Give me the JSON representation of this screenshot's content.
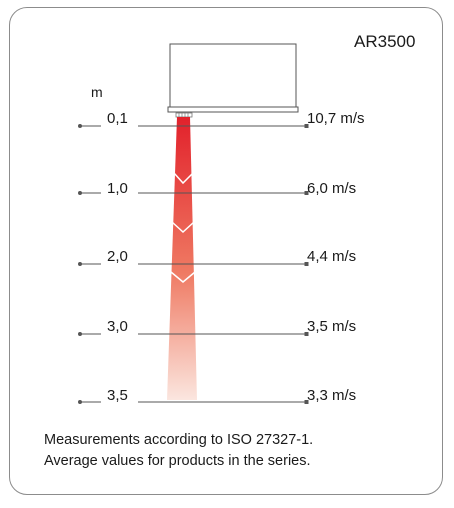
{
  "model": "AR3500",
  "distance_unit": "m",
  "rows": [
    {
      "distance": "0,1",
      "speed": "10,7 m/s"
    },
    {
      "distance": "1,0",
      "speed": "6,0 m/s"
    },
    {
      "distance": "2,0",
      "speed": "4,4 m/s"
    },
    {
      "distance": "3,0",
      "speed": "3,5 m/s"
    },
    {
      "distance": "3,5",
      "speed": "3,3 m/s"
    }
  ],
  "note": {
    "line1": "Measurements according to ISO 27327-1.",
    "line2": "Average values for products in the series."
  },
  "colors": {
    "beam_top": "#e2212b",
    "beam_bottom": "#fbe6df",
    "line": "#555555"
  }
}
